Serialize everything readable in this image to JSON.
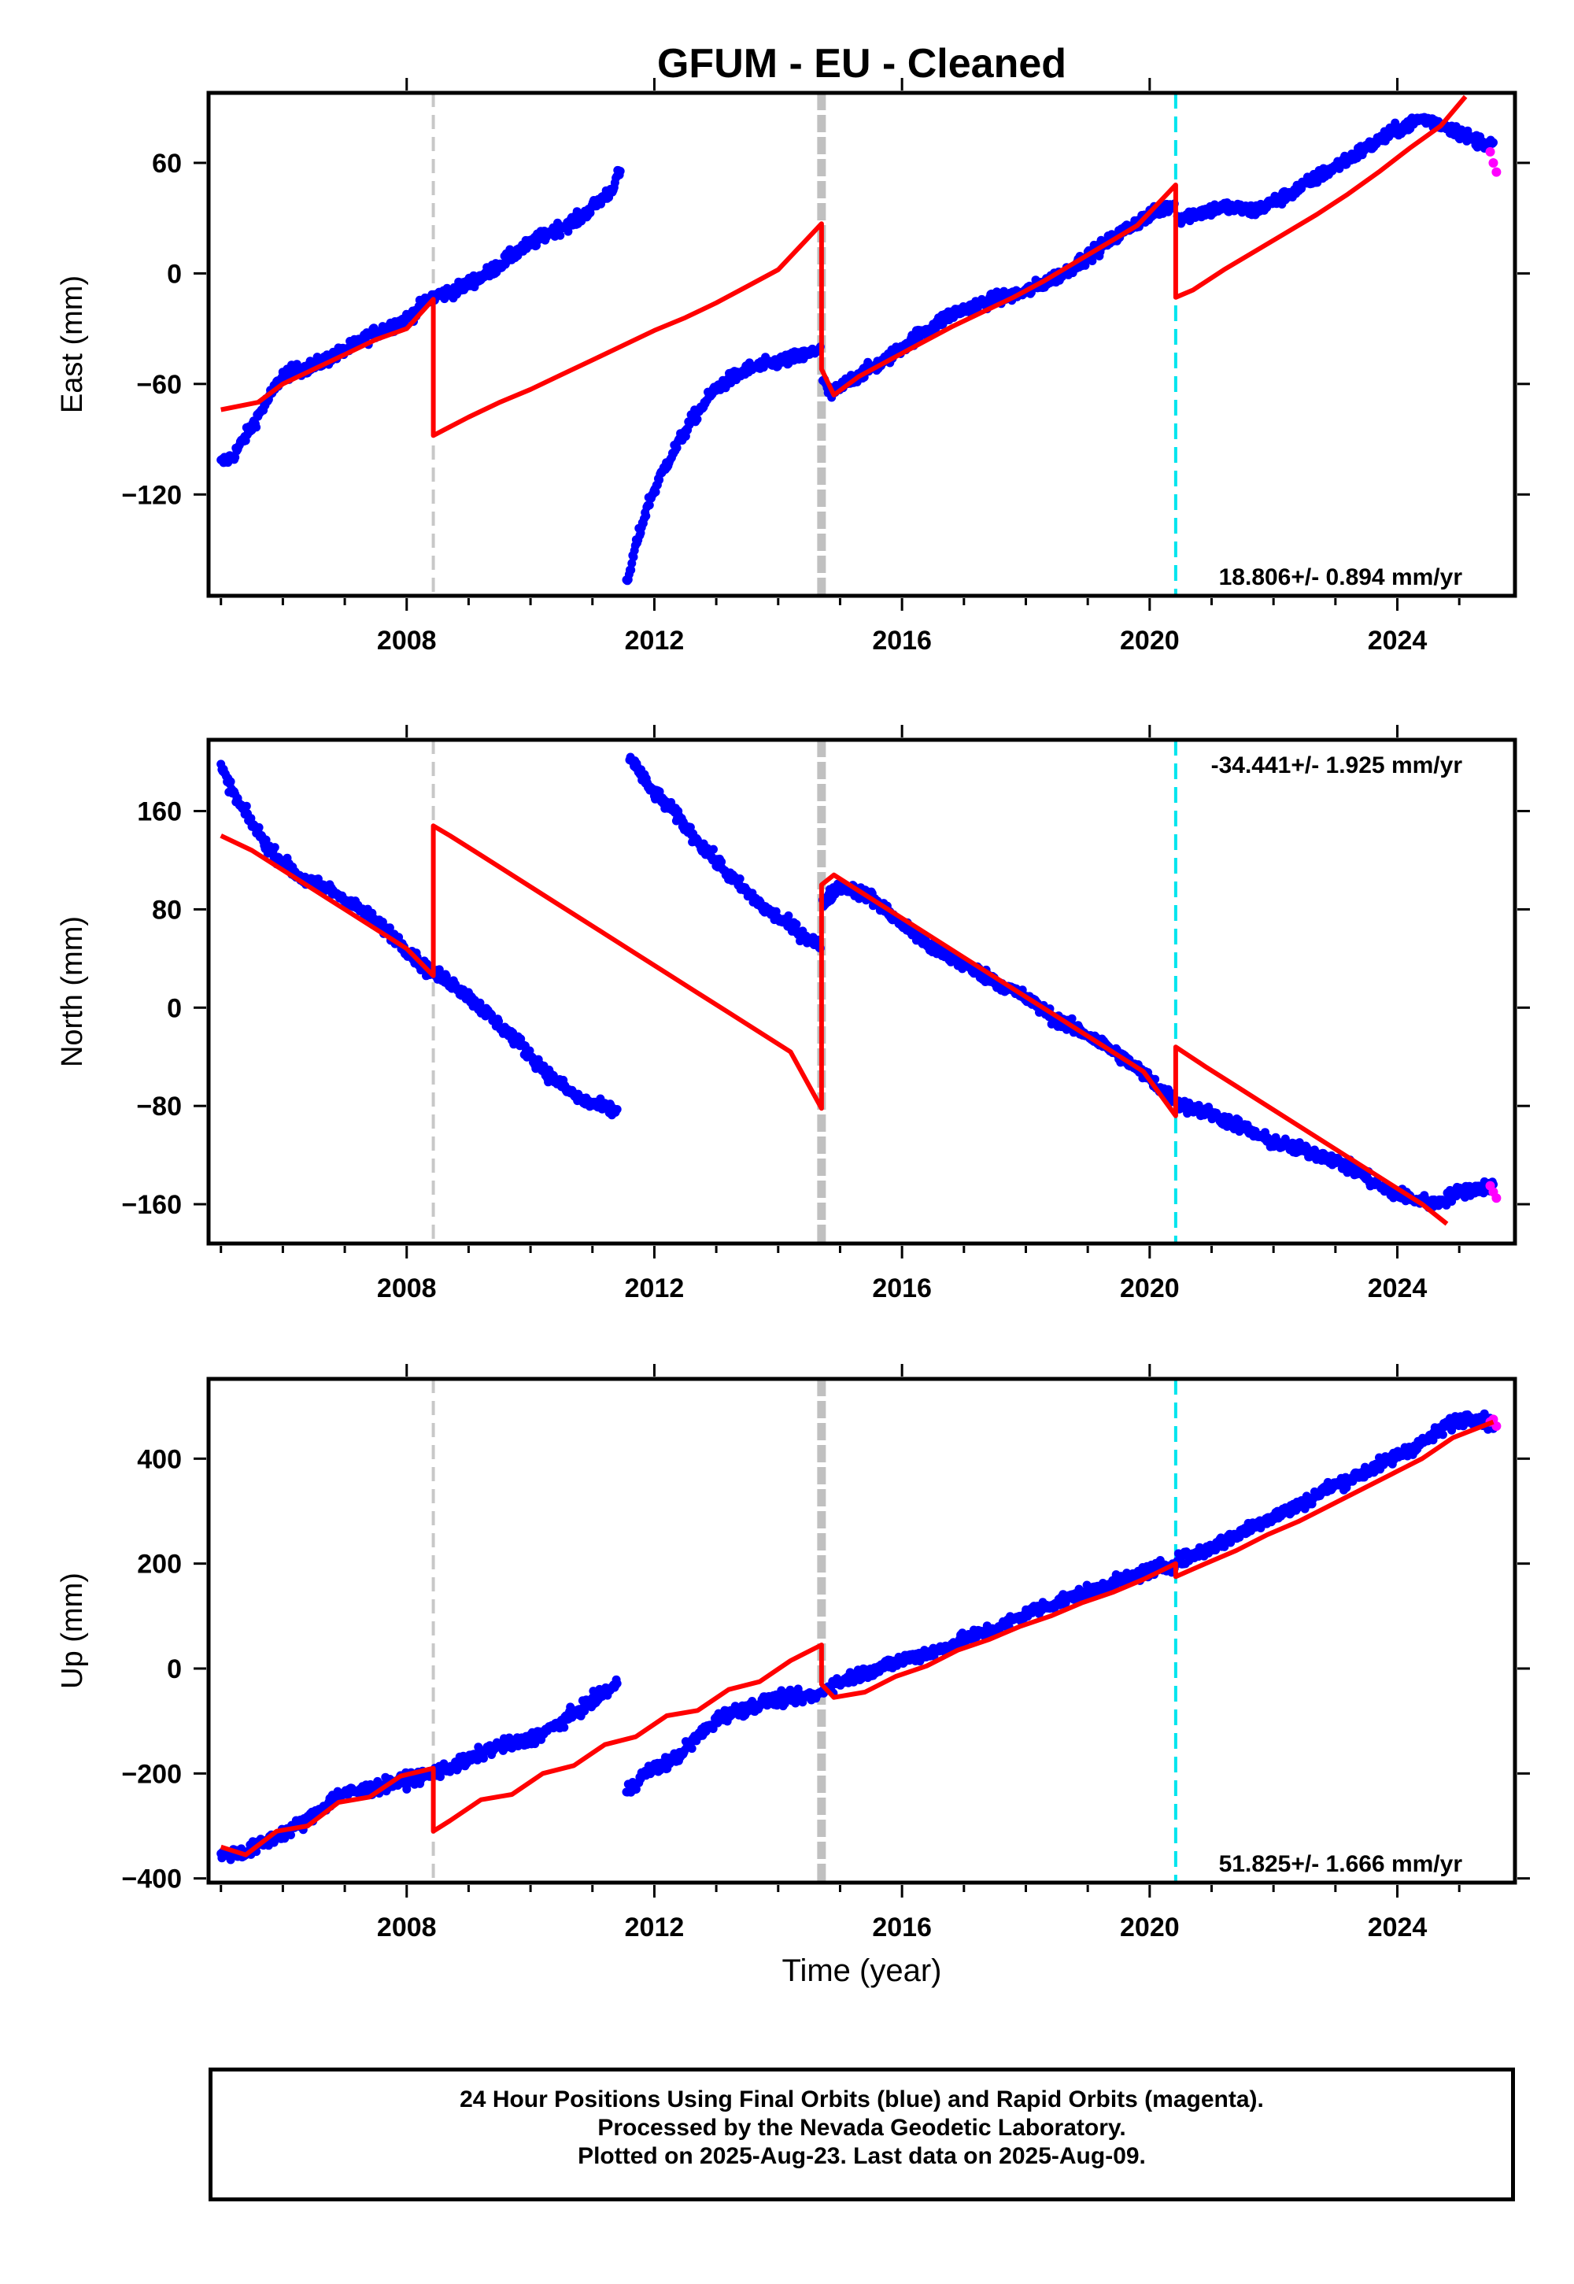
{
  "title": "GFUM  - EU - Cleaned",
  "x_axis_label": "Time (year)",
  "footer": {
    "line1": "24 Hour Positions Using Final Orbits (blue) and Rapid Orbits (magenta).",
    "line2": "Processed by the Nevada Geodetic Laboratory.",
    "line3": "Plotted on 2025-Aug-23. Last data on 2025-Aug-09."
  },
  "colors": {
    "final_orbits": "#0000ff",
    "rapid_orbits": "#ff00ff",
    "model": "#ff0000",
    "event_light_gray": "#c8c8c8",
    "event_gray_thick": "#c0c0c0",
    "event_cyan": "#00e5ee"
  },
  "chart_data": [
    {
      "type": "scatter",
      "panel": "east",
      "ylabel": "East (mm)",
      "xlim": [
        2004.8,
        2025.9
      ],
      "ylim": [
        -175,
        98
      ],
      "xticks": [
        2008,
        2012,
        2016,
        2020,
        2024
      ],
      "yticks": [
        60,
        0,
        -60,
        -120
      ],
      "ytick_labels": [
        "60",
        "0",
        "−60",
        "−120"
      ],
      "rate_text": "18.806+/- 0.894 mm/yr",
      "rate_position": "bottom-right",
      "events": [
        {
          "x": 2008.43,
          "style": "light-gray-dashed"
        },
        {
          "x": 2014.7,
          "style": "gray-thick-dashed"
        },
        {
          "x": 2020.42,
          "style": "cyan-dashed"
        }
      ],
      "final_segments": [
        {
          "x": [
            2005.0,
            2005.2,
            2005.5,
            2006.0,
            2006.5,
            2007.0,
            2007.5,
            2008.0,
            2008.4,
            2008.8,
            2009.3,
            2009.8,
            2010.3,
            2010.8,
            2011.3,
            2011.45
          ],
          "y": [
            -103,
            -99,
            -83,
            -55,
            -50,
            -42,
            -32,
            -25,
            -13,
            -9,
            0,
            12,
            22,
            30,
            45,
            56
          ]
        },
        {
          "x": [
            2011.55,
            2011.7,
            2011.9,
            2012.2,
            2012.6,
            2013.0,
            2013.5,
            2014.0,
            2014.5,
            2014.68
          ],
          "y": [
            -170,
            -148,
            -125,
            -103,
            -80,
            -62,
            -52,
            -48,
            -44,
            -40
          ]
        },
        {
          "x": [
            2014.72,
            2014.85,
            2015.2,
            2015.7,
            2016.2,
            2016.8,
            2017.4,
            2018.0,
            2018.6,
            2019.2,
            2019.8,
            2020.4
          ],
          "y": [
            -58,
            -66,
            -57,
            -48,
            -35,
            -22,
            -15,
            -10,
            0,
            14,
            28,
            38
          ]
        },
        {
          "x": [
            2020.45,
            2020.8,
            2021.2,
            2021.7,
            2022.2,
            2022.7,
            2023.2,
            2023.6,
            2024.0,
            2024.4,
            2024.8,
            2025.2,
            2025.55
          ],
          "y": [
            30,
            33,
            36,
            34,
            42,
            52,
            62,
            70,
            78,
            84,
            80,
            73,
            70
          ]
        }
      ],
      "rapid": {
        "x": [
          2025.5,
          2025.55,
          2025.6
        ],
        "y": [
          66,
          60,
          55
        ]
      },
      "model": {
        "x": [
          2005.0,
          2005.6,
          2006.0,
          2006.5,
          2007.0,
          2007.5,
          2008.0,
          2008.43,
          2008.43,
          2008.6,
          2009.0,
          2009.5,
          2010.0,
          2010.5,
          2011.0,
          2011.5,
          2012.0,
          2012.5,
          2013.0,
          2013.5,
          2014.0,
          2014.7,
          2014.7,
          2014.9,
          2015.3,
          2015.8,
          2016.3,
          2016.8,
          2017.3,
          2017.8,
          2018.3,
          2018.8,
          2019.3,
          2019.8,
          2020.42,
          2020.42,
          2020.7,
          2021.2,
          2021.7,
          2022.2,
          2022.7,
          2023.2,
          2023.7,
          2024.2,
          2024.7,
          2025.1
        ],
        "y": [
          -74,
          -70,
          -60,
          -52,
          -44,
          -36,
          -30,
          -14,
          -88,
          -85,
          -78,
          -70,
          -63,
          -55,
          -47,
          -39,
          -31,
          -24,
          -16,
          -7,
          2,
          27,
          -52,
          -66,
          -56,
          -47,
          -38,
          -29,
          -21,
          -13,
          -4,
          6,
          16,
          26,
          48,
          -13,
          -9,
          2,
          12,
          22,
          32,
          43,
          55,
          68,
          80,
          96
        ]
      }
    },
    {
      "type": "scatter",
      "panel": "north",
      "ylabel": "North (mm)",
      "xlim": [
        2004.8,
        2025.9
      ],
      "ylim": [
        -192,
        218
      ],
      "xticks": [
        2008,
        2012,
        2016,
        2020,
        2024
      ],
      "yticks": [
        160,
        80,
        0,
        -80,
        -160
      ],
      "ytick_labels": [
        "160",
        "80",
        "0",
        "−80",
        "−160"
      ],
      "rate_text": "-34.441+/- 1.925 mm/yr",
      "rate_position": "top-right",
      "events": [
        {
          "x": 2008.43,
          "style": "light-gray-dashed"
        },
        {
          "x": 2014.7,
          "style": "gray-thick-dashed"
        },
        {
          "x": 2020.42,
          "style": "cyan-dashed"
        }
      ],
      "final_segments": [
        {
          "x": [
            2005.0,
            2005.3,
            2005.8,
            2006.3,
            2006.8,
            2007.3,
            2007.8,
            2008.3,
            2008.8,
            2009.3,
            2009.8,
            2010.3,
            2010.8,
            2011.4
          ],
          "y": [
            195,
            165,
            128,
            105,
            95,
            78,
            58,
            32,
            18,
            -5,
            -28,
            -55,
            -75,
            -85
          ]
        },
        {
          "x": [
            2011.6,
            2011.9,
            2012.3,
            2012.8,
            2013.3,
            2013.8,
            2014.3,
            2014.68
          ],
          "y": [
            205,
            180,
            160,
            130,
            103,
            80,
            63,
            50
          ]
        },
        {
          "x": [
            2014.72,
            2015.0,
            2015.5,
            2016.0,
            2016.5,
            2017.0,
            2017.5,
            2018.0,
            2018.5,
            2019.0,
            2019.5,
            2020.0,
            2020.4
          ],
          "y": [
            85,
            100,
            90,
            68,
            48,
            35,
            22,
            8,
            -10,
            -22,
            -38,
            -58,
            -75
          ]
        },
        {
          "x": [
            2020.45,
            2020.9,
            2021.4,
            2021.9,
            2022.4,
            2022.9,
            2023.4,
            2023.8,
            2024.2,
            2024.6,
            2025.0,
            2025.55
          ],
          "y": [
            -78,
            -85,
            -95,
            -108,
            -115,
            -122,
            -135,
            -148,
            -155,
            -160,
            -150,
            -145
          ]
        }
      ],
      "rapid": {
        "x": [
          2025.5,
          2025.55,
          2025.6
        ],
        "y": [
          -145,
          -150,
          -155
        ]
      },
      "model": {
        "x": [
          2005.0,
          2005.5,
          2006.0,
          2006.5,
          2007.0,
          2007.5,
          2008.0,
          2008.43,
          2008.43,
          2008.7,
          2009.2,
          2009.7,
          2010.2,
          2010.7,
          2011.2,
          2011.7,
          2012.2,
          2012.7,
          2013.2,
          2013.7,
          2014.2,
          2014.7,
          2014.7,
          2014.9,
          2015.4,
          2015.9,
          2016.4,
          2016.9,
          2017.4,
          2017.9,
          2018.4,
          2018.9,
          2019.4,
          2019.9,
          2020.42,
          2020.42,
          2020.9,
          2021.4,
          2021.9,
          2022.4,
          2022.9,
          2023.4,
          2023.9,
          2024.4,
          2024.8
        ],
        "y": [
          140,
          128,
          112,
          96,
          80,
          64,
          48,
          26,
          148,
          140,
          124,
          108,
          92,
          76,
          60,
          44,
          28,
          12,
          -4,
          -20,
          -36,
          -82,
          100,
          108,
          92,
          76,
          60,
          44,
          28,
          12,
          -4,
          -20,
          -36,
          -52,
          -88,
          -32,
          -48,
          -64,
          -80,
          -96,
          -112,
          -128,
          -144,
          -160,
          -176
        ]
      }
    },
    {
      "type": "scatter",
      "panel": "up",
      "ylabel": "Up (mm)",
      "xlim": [
        2004.8,
        2025.9
      ],
      "ylim": [
        -408,
        552
      ],
      "xticks": [
        2008,
        2012,
        2016,
        2020,
        2024
      ],
      "yticks": [
        400,
        200,
        0,
        -200,
        -400
      ],
      "ytick_labels": [
        "400",
        "200",
        "0",
        "−200",
        "−400"
      ],
      "rate_text": "51.825+/- 1.666 mm/yr",
      "rate_position": "bottom-right",
      "events": [
        {
          "x": 2008.43,
          "style": "light-gray-dashed"
        },
        {
          "x": 2014.7,
          "style": "gray-thick-dashed"
        },
        {
          "x": 2020.42,
          "style": "cyan-dashed"
        }
      ],
      "final_segments": [
        {
          "x": [
            2005.0,
            2005.4,
            2005.9,
            2006.4,
            2006.9,
            2007.4,
            2007.9,
            2008.4,
            2008.9,
            2009.4,
            2009.9,
            2010.4,
            2010.9,
            2011.4
          ],
          "y": [
            -355,
            -350,
            -320,
            -290,
            -240,
            -230,
            -215,
            -200,
            -180,
            -150,
            -140,
            -110,
            -70,
            -30
          ]
        },
        {
          "x": [
            2011.55,
            2011.9,
            2012.3,
            2012.7,
            2013.1,
            2013.5,
            2013.9,
            2014.3,
            2014.68
          ],
          "y": [
            -235,
            -195,
            -175,
            -130,
            -90,
            -75,
            -60,
            -55,
            -50
          ]
        },
        {
          "x": [
            2014.72,
            2015.1,
            2015.6,
            2016.1,
            2016.6,
            2017.1,
            2017.6,
            2018.1,
            2018.6,
            2019.1,
            2019.6,
            2020.1,
            2020.4
          ],
          "y": [
            -40,
            -20,
            0,
            20,
            35,
            60,
            80,
            110,
            130,
            150,
            170,
            190,
            200
          ]
        },
        {
          "x": [
            2020.45,
            2020.9,
            2021.4,
            2021.9,
            2022.4,
            2022.9,
            2023.4,
            2023.9,
            2024.4,
            2024.9,
            2025.2,
            2025.55
          ],
          "y": [
            205,
            225,
            255,
            285,
            310,
            345,
            370,
            400,
            430,
            470,
            480,
            465
          ]
        }
      ],
      "rapid": {
        "x": [
          2025.5,
          2025.55,
          2025.6
        ],
        "y": [
          470,
          475,
          462
        ]
      },
      "model": {
        "x": [
          2005.0,
          2005.4,
          2005.9,
          2006.4,
          2006.9,
          2007.4,
          2007.9,
          2008.43,
          2008.43,
          2008.7,
          2009.2,
          2009.7,
          2010.2,
          2010.7,
          2011.2,
          2011.7,
          2012.2,
          2012.7,
          2013.2,
          2013.7,
          2014.2,
          2014.7,
          2014.7,
          2014.9,
          2015.4,
          2015.9,
          2016.4,
          2016.9,
          2017.4,
          2017.9,
          2018.4,
          2018.9,
          2019.4,
          2019.9,
          2020.42,
          2020.42,
          2020.9,
          2021.4,
          2021.9,
          2022.4,
          2022.9,
          2023.4,
          2023.9,
          2024.4,
          2024.9,
          2025.55
        ],
        "y": [
          -340,
          -355,
          -310,
          -300,
          -255,
          -245,
          -205,
          -190,
          -310,
          -290,
          -250,
          -240,
          -200,
          -185,
          -145,
          -130,
          -90,
          -80,
          -40,
          -25,
          15,
          45,
          -30,
          -55,
          -45,
          -15,
          5,
          35,
          55,
          80,
          100,
          125,
          145,
          170,
          200,
          175,
          200,
          225,
          255,
          280,
          310,
          340,
          370,
          400,
          440,
          470
        ]
      }
    }
  ]
}
